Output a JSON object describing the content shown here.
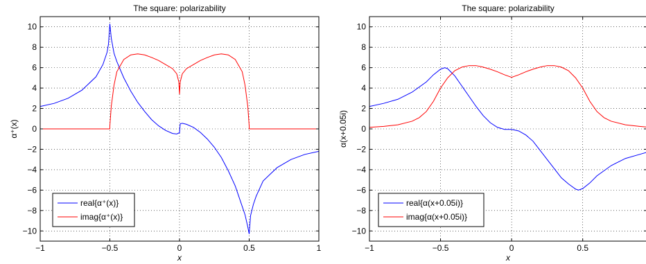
{
  "chart_data": [
    {
      "type": "line",
      "title": "The square: polarizability",
      "xlabel": "x",
      "ylabel": "α⁺(x)",
      "xlim": [
        -1,
        1
      ],
      "ylim": [
        -11,
        11
      ],
      "xticks": [
        -1,
        -0.5,
        0,
        0.5,
        1
      ],
      "xtick_labels": [
        "−1",
        "−0.5",
        "0",
        "0.5",
        "1"
      ],
      "yticks": [
        10,
        8,
        6,
        4,
        2,
        0,
        -2,
        -4,
        -6,
        -8,
        -10
      ],
      "ytick_labels": [
        "10",
        "8",
        "6",
        "4",
        "2",
        "0",
        "−2",
        "−4",
        "−6",
        "−8",
        "−10"
      ],
      "grid": true,
      "legend_position": "bottom-left",
      "series": [
        {
          "name": "real{α⁺(x)}",
          "color": "#0000ff",
          "x": [
            -1,
            -0.9,
            -0.8,
            -0.7,
            -0.6,
            -0.55,
            -0.52,
            -0.51,
            -0.5,
            -0.49,
            -0.47,
            -0.45,
            -0.4,
            -0.35,
            -0.3,
            -0.25,
            -0.2,
            -0.15,
            -0.1,
            -0.05,
            -0.02,
            -0.005,
            0,
            0.005,
            0.02,
            0.05,
            0.1,
            0.15,
            0.2,
            0.25,
            0.3,
            0.35,
            0.4,
            0.45,
            0.47,
            0.49,
            0.5,
            0.51,
            0.53,
            0.55,
            0.6,
            0.7,
            0.8,
            0.9,
            1
          ],
          "y": [
            2.2,
            2.5,
            3.0,
            3.8,
            5.1,
            6.3,
            7.5,
            8.3,
            10.3,
            8.9,
            7.4,
            6.6,
            5.0,
            3.7,
            2.6,
            1.7,
            0.9,
            0.3,
            -0.15,
            -0.45,
            -0.5,
            -0.4,
            -0.4,
            0.5,
            0.55,
            0.45,
            0.15,
            -0.35,
            -1.0,
            -1.8,
            -2.8,
            -4.1,
            -5.6,
            -7.6,
            -8.4,
            -9.6,
            -10.3,
            -8.5,
            -7.4,
            -6.6,
            -5.1,
            -3.8,
            -3.0,
            -2.5,
            -2.2
          ]
        },
        {
          "name": "imag{α⁺(x)}",
          "color": "#ff0000",
          "x": [
            -1,
            -0.6,
            -0.5,
            -0.5,
            -0.49,
            -0.47,
            -0.45,
            -0.4,
            -0.35,
            -0.3,
            -0.25,
            -0.2,
            -0.15,
            -0.1,
            -0.05,
            -0.02,
            -0.005,
            0,
            0.005,
            0.02,
            0.05,
            0.1,
            0.15,
            0.2,
            0.25,
            0.3,
            0.35,
            0.4,
            0.45,
            0.47,
            0.49,
            0.5,
            0.5,
            0.6,
            1
          ],
          "y": [
            0,
            0,
            0,
            0.3,
            2.2,
            4.3,
            5.6,
            6.8,
            7.25,
            7.35,
            7.25,
            7.0,
            6.7,
            6.3,
            5.9,
            5.4,
            4.6,
            3.4,
            4.6,
            5.4,
            5.9,
            6.3,
            6.7,
            7.0,
            7.25,
            7.35,
            7.25,
            6.8,
            5.6,
            4.3,
            2.2,
            0.3,
            0,
            0,
            0
          ]
        }
      ]
    },
    {
      "type": "line",
      "title": "The square: polarizability",
      "xlabel": "x",
      "ylabel": "α(x+0.05i)",
      "xlim": [
        -1,
        0.95
      ],
      "ylim": [
        -11,
        11
      ],
      "xticks": [
        -1,
        -0.5,
        0,
        0.5
      ],
      "xtick_labels": [
        "−1",
        "−0.5",
        "0",
        "0.5"
      ],
      "yticks": [
        10,
        8,
        6,
        4,
        2,
        0,
        -2,
        -4,
        -6,
        -8,
        -10
      ],
      "ytick_labels": [
        "10",
        "8",
        "6",
        "4",
        "2",
        "0",
        "−2",
        "−4",
        "−6",
        "−8",
        "−10"
      ],
      "grid": true,
      "legend_position": "bottom-left",
      "series": [
        {
          "name": "real{α(x+0.05i)}",
          "color": "#0000ff",
          "x": [
            -1,
            -0.9,
            -0.8,
            -0.7,
            -0.6,
            -0.55,
            -0.5,
            -0.47,
            -0.45,
            -0.4,
            -0.35,
            -0.3,
            -0.25,
            -0.2,
            -0.15,
            -0.1,
            -0.05,
            0,
            0.05,
            0.1,
            0.15,
            0.2,
            0.25,
            0.3,
            0.35,
            0.4,
            0.45,
            0.47,
            0.5,
            0.55,
            0.6,
            0.7,
            0.8,
            0.9,
            0.95
          ],
          "y": [
            2.2,
            2.5,
            2.9,
            3.6,
            4.6,
            5.3,
            5.85,
            6.0,
            5.9,
            5.2,
            4.2,
            3.2,
            2.2,
            1.3,
            0.6,
            0.15,
            -0.05,
            -0.05,
            -0.2,
            -0.6,
            -1.2,
            -2.1,
            -3.0,
            -3.9,
            -4.8,
            -5.4,
            -5.9,
            -6.0,
            -5.85,
            -5.3,
            -4.6,
            -3.6,
            -2.9,
            -2.5,
            -2.3
          ]
        },
        {
          "name": "imag{α(x+0.05i)}",
          "color": "#ff0000",
          "x": [
            -1,
            -0.9,
            -0.8,
            -0.7,
            -0.65,
            -0.6,
            -0.55,
            -0.5,
            -0.45,
            -0.4,
            -0.35,
            -0.3,
            -0.25,
            -0.2,
            -0.15,
            -0.1,
            -0.05,
            0,
            0.05,
            0.1,
            0.15,
            0.2,
            0.25,
            0.3,
            0.35,
            0.4,
            0.45,
            0.5,
            0.55,
            0.6,
            0.65,
            0.7,
            0.8,
            0.9,
            0.95
          ],
          "y": [
            0.15,
            0.25,
            0.4,
            0.75,
            1.1,
            1.7,
            2.7,
            4.0,
            5.0,
            5.7,
            6.05,
            6.2,
            6.2,
            6.05,
            5.85,
            5.6,
            5.3,
            5.05,
            5.3,
            5.6,
            5.85,
            6.05,
            6.2,
            6.2,
            6.05,
            5.7,
            5.0,
            4.0,
            2.7,
            1.7,
            1.1,
            0.75,
            0.4,
            0.25,
            0.18
          ]
        }
      ]
    }
  ]
}
